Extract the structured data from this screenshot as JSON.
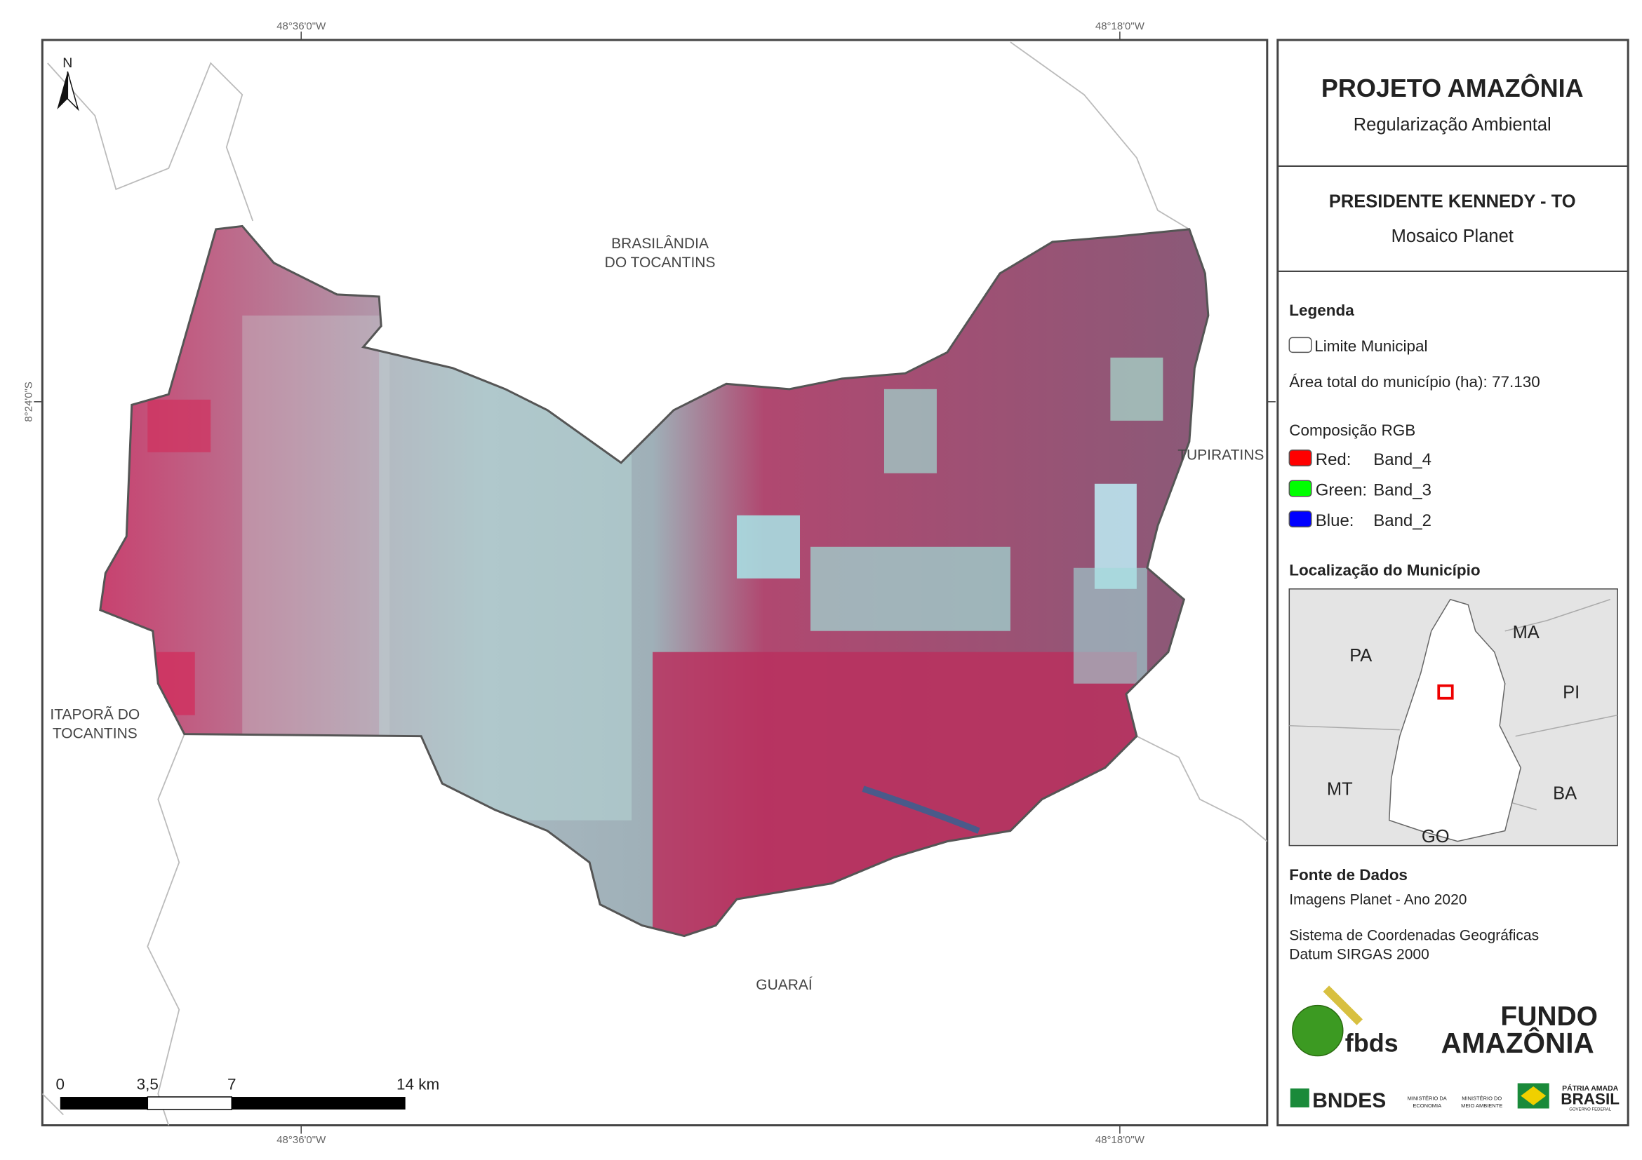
{
  "map": {
    "coords": {
      "lon_left": "48°36'0\"W",
      "lon_right": "48°18'0\"W",
      "lat": "8°24'0\"S"
    },
    "north": "N",
    "places": {
      "brasilandia": [
        "BRASILÂNDIA",
        "DO TOCANTINS"
      ],
      "tupiratins": "TUPIRATINS",
      "itapora": [
        "ITAPORÃ DO",
        "TOCANTINS"
      ],
      "guarai": "GUARAÍ"
    },
    "scale_bar": {
      "labels": [
        "0",
        "3,5",
        "7",
        "14 km"
      ]
    }
  },
  "panel": {
    "title": "PROJETO AMAZÔNIA",
    "subtitle": "Regularização Ambiental",
    "municipality": "PRESIDENTE KENNEDY - TO",
    "mosaic": "Mosaico Planet",
    "legend": {
      "title": "Legenda",
      "limit": "Limite Municipal",
      "area": "Área total do município (ha): 77.130",
      "rgb_title": "Composição RGB",
      "bands": [
        {
          "channel": "Red:",
          "band": "Band_4",
          "color": "#ff0000"
        },
        {
          "channel": "Green:",
          "band": "Band_3",
          "color": "#00ff00"
        },
        {
          "channel": "Blue:",
          "band": "Band_2",
          "color": "#0000ff"
        }
      ]
    },
    "location": {
      "title": "Localização do Município",
      "states": [
        "PA",
        "MA",
        "PI",
        "MT",
        "BA",
        "GO"
      ]
    },
    "sources": {
      "title": "Fonte de Dados",
      "lines": [
        "Imagens Planet - Ano 2020",
        "Sistema de Coordenadas Geográficas",
        "Datum SIRGAS 2000"
      ]
    },
    "logos": {
      "fbds": "fbds",
      "fundo": [
        "FUNDO",
        "AMAZÔNIA"
      ],
      "bndes": "BNDES",
      "ministries": [
        "MINISTÉRIO DA",
        "ECONOMIA",
        "MINISTÉRIO DO",
        "MEIO AMBIENTE"
      ],
      "brasil": [
        "PÁTRIA AMADA",
        "BRASIL",
        "GOVERNO FEDERAL"
      ]
    }
  }
}
